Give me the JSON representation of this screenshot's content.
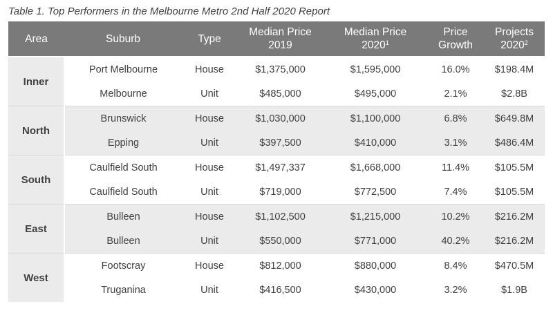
{
  "caption": "Table 1. Top Performers in the Melbourne Metro 2nd Half 2020 Report",
  "headers": {
    "area": "Area",
    "suburb": "Suburb",
    "type": "Type",
    "median2019_line1": "Median Price",
    "median2019_line2": "2019",
    "median2020_line1": "Median Price",
    "median2020_line2": "2020",
    "median2020_sup": "1",
    "growth_line1": "Price",
    "growth_line2": "Growth",
    "projects_line1": "Projects",
    "projects_line2": "2020",
    "projects_sup": "2"
  },
  "groups": [
    {
      "area": "Inner",
      "rows": [
        {
          "suburb": "Port Melbourne",
          "type": "House",
          "median2019": "$1,375,000",
          "median2020": "$1,595,000",
          "growth": "16.0%",
          "projects": "$198.4M"
        },
        {
          "suburb": "Melbourne",
          "type": "Unit",
          "median2019": "$485,000",
          "median2020": "$495,000",
          "growth": "2.1%",
          "projects": "$2.8B"
        }
      ]
    },
    {
      "area": "North",
      "rows": [
        {
          "suburb": "Brunswick",
          "type": "House",
          "median2019": "$1,030,000",
          "median2020": "$1,100,000",
          "growth": "6.8%",
          "projects": "$649.8M"
        },
        {
          "suburb": "Epping",
          "type": "Unit",
          "median2019": "$397,500",
          "median2020": "$410,000",
          "growth": "3.1%",
          "projects": "$486.4M"
        }
      ]
    },
    {
      "area": "South",
      "rows": [
        {
          "suburb": "Caulfield South",
          "type": "House",
          "median2019": "$1,497,337",
          "median2020": "$1,668,000",
          "growth": "11.4%",
          "projects": "$105.5M"
        },
        {
          "suburb": "Caulfield South",
          "type": "Unit",
          "median2019": "$719,000",
          "median2020": "$772,500",
          "growth": "7.4%",
          "projects": "$105.5M"
        }
      ]
    },
    {
      "area": "East",
      "rows": [
        {
          "suburb": "Bulleen",
          "type": "House",
          "median2019": "$1,102,500",
          "median2020": "$1,215,000",
          "growth": "10.2%",
          "projects": "$216.2M"
        },
        {
          "suburb": "Bulleen",
          "type": "Unit",
          "median2019": "$550,000",
          "median2020": "$771,000",
          "growth": "40.2%",
          "projects": "$216.2M"
        }
      ]
    },
    {
      "area": "West",
      "rows": [
        {
          "suburb": "Footscray",
          "type": "House",
          "median2019": "$812,000",
          "median2020": "$880,000",
          "growth": "8.4%",
          "projects": "$470.5M"
        },
        {
          "suburb": "Truganina",
          "type": "Unit",
          "median2019": "$416,500",
          "median2020": "$430,000",
          "growth": "3.2%",
          "projects": "$1.9B"
        }
      ]
    }
  ]
}
